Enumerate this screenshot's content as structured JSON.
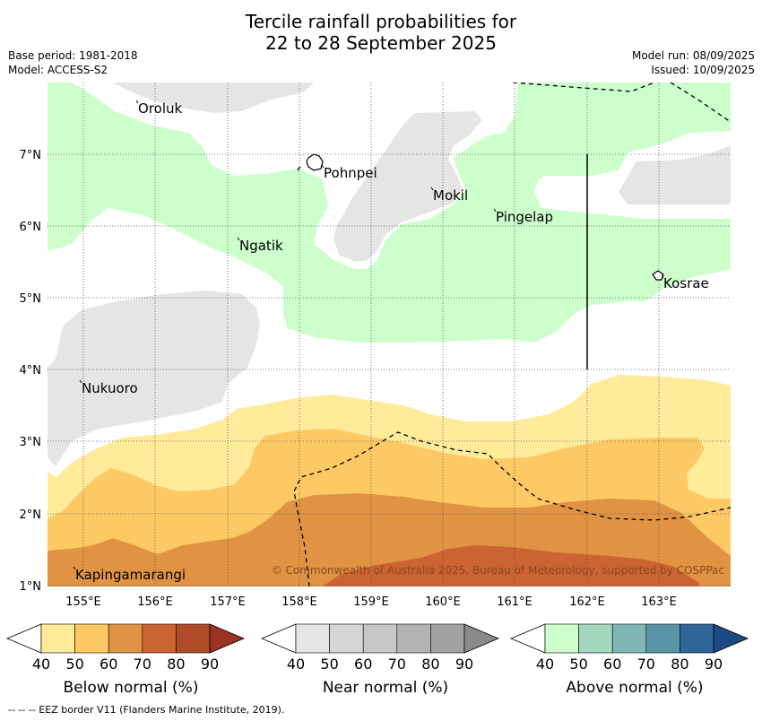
{
  "title_line1": "Tercile rainfall probabilities for",
  "title_line2": "22 to 28 September 2025",
  "meta": {
    "base_period": "Base period: 1981-2018",
    "model": "Model: ACCESS-S2",
    "model_run": "Model run: 08/09/2025",
    "issued": "Issued: 10/09/2025"
  },
  "map": {
    "lon_ticks": [
      "155°E",
      "156°E",
      "157°E",
      "158°E",
      "159°E",
      "160°E",
      "161°E",
      "162°E",
      "163°E"
    ],
    "lat_ticks": [
      "7°N",
      "6°N",
      "5°N",
      "4°N",
      "3°N",
      "2°N",
      "1°N"
    ],
    "places": [
      {
        "name": "Oroluk"
      },
      {
        "name": "Pohnpei"
      },
      {
        "name": "Mokil"
      },
      {
        "name": "Pingelap"
      },
      {
        "name": "Ngatik"
      },
      {
        "name": "Kosrae"
      },
      {
        "name": "Nukuoro"
      },
      {
        "name": "Kapingamarangi"
      }
    ],
    "copyright": "© Commonwealth of Australia 2025, Bureau of Meteorology, supported by COSPPac"
  },
  "colorbars": [
    {
      "label": "Below normal (%)",
      "ticks": [
        "40",
        "50",
        "60",
        "70",
        "80",
        "90"
      ],
      "colors": [
        "#ffffff",
        "#ffeb9a",
        "#fdc964",
        "#e09342",
        "#cb6333",
        "#b04b2a",
        "#9b3322"
      ]
    },
    {
      "label": "Near normal (%)",
      "ticks": [
        "40",
        "50",
        "60",
        "70",
        "80",
        "90"
      ],
      "colors": [
        "#ffffff",
        "#e5e5e5",
        "#d6d6d6",
        "#c6c6c6",
        "#b3b3b3",
        "#a1a1a1",
        "#8a8a8a"
      ]
    },
    {
      "label": "Above normal (%)",
      "ticks": [
        "40",
        "50",
        "60",
        "70",
        "80",
        "90"
      ],
      "colors": [
        "#ffffff",
        "#ccffcc",
        "#a3d8be",
        "#80b8b4",
        "#5a94a6",
        "#2f6699",
        "#1c4a85"
      ]
    }
  ],
  "footer": "--  --  -- EEZ border V11 (Flanders Marine Institute, 2019)."
}
